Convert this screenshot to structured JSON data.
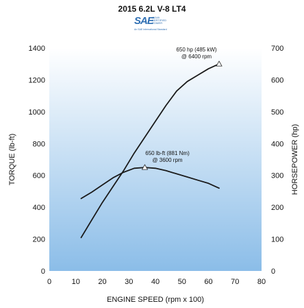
{
  "chart_data": {
    "type": "line",
    "title": "2015 6.2L V-8 LT4",
    "logo": {
      "mark": "SAE",
      "certified_lines": [
        "J1349",
        "CERTIFIED",
        "POWER"
      ],
      "subtitle": "An SAE International Standard"
    },
    "xlabel": "ENGINE SPEED (rpm x 100)",
    "ylabel_left": "TORQUE (lb-ft)",
    "ylabel_right": "HORSEPOWER (hp)",
    "xlim": [
      0,
      80
    ],
    "ylim_left": [
      0,
      1400
    ],
    "ylim_right": [
      0,
      700
    ],
    "xticks": [
      "0",
      "10",
      "20",
      "30",
      "40",
      "50",
      "60",
      "70",
      "80"
    ],
    "yticks_left": [
      "0",
      "200",
      "400",
      "600",
      "800",
      "1000",
      "1200",
      "1400"
    ],
    "yticks_right": [
      "0",
      "100",
      "200",
      "300",
      "400",
      "500",
      "600",
      "700"
    ],
    "background_gradient": [
      "#ffffff",
      "#8bbde8"
    ],
    "line_color": "#1a1a1a",
    "series": [
      {
        "axis": "left",
        "x": [
          12,
          16,
          20,
          24,
          28,
          32,
          36,
          40,
          44,
          48,
          52,
          56,
          60,
          64
        ],
        "y": [
          455,
          495,
          540,
          585,
          620,
          645,
          650,
          645,
          630,
          610,
          590,
          570,
          550,
          520
        ]
      },
      {
        "axis": "right",
        "x": [
          12,
          16,
          20,
          24,
          28,
          32,
          36,
          40,
          44,
          48,
          52,
          56,
          60,
          64
        ],
        "y": [
          105,
          160,
          215,
          265,
          315,
          370,
          420,
          470,
          520,
          565,
          595,
          615,
          635,
          650
        ]
      }
    ],
    "annotations": [
      {
        "series": 1,
        "x": 64,
        "y": 650,
        "lines": [
          "650 hp (485 kW)",
          "@ 6400 rpm"
        ]
      },
      {
        "series": 0,
        "x": 36,
        "y": 650,
        "lines": [
          "650 lb-ft (881 Nm)",
          "@ 3600 rpm"
        ]
      }
    ]
  }
}
